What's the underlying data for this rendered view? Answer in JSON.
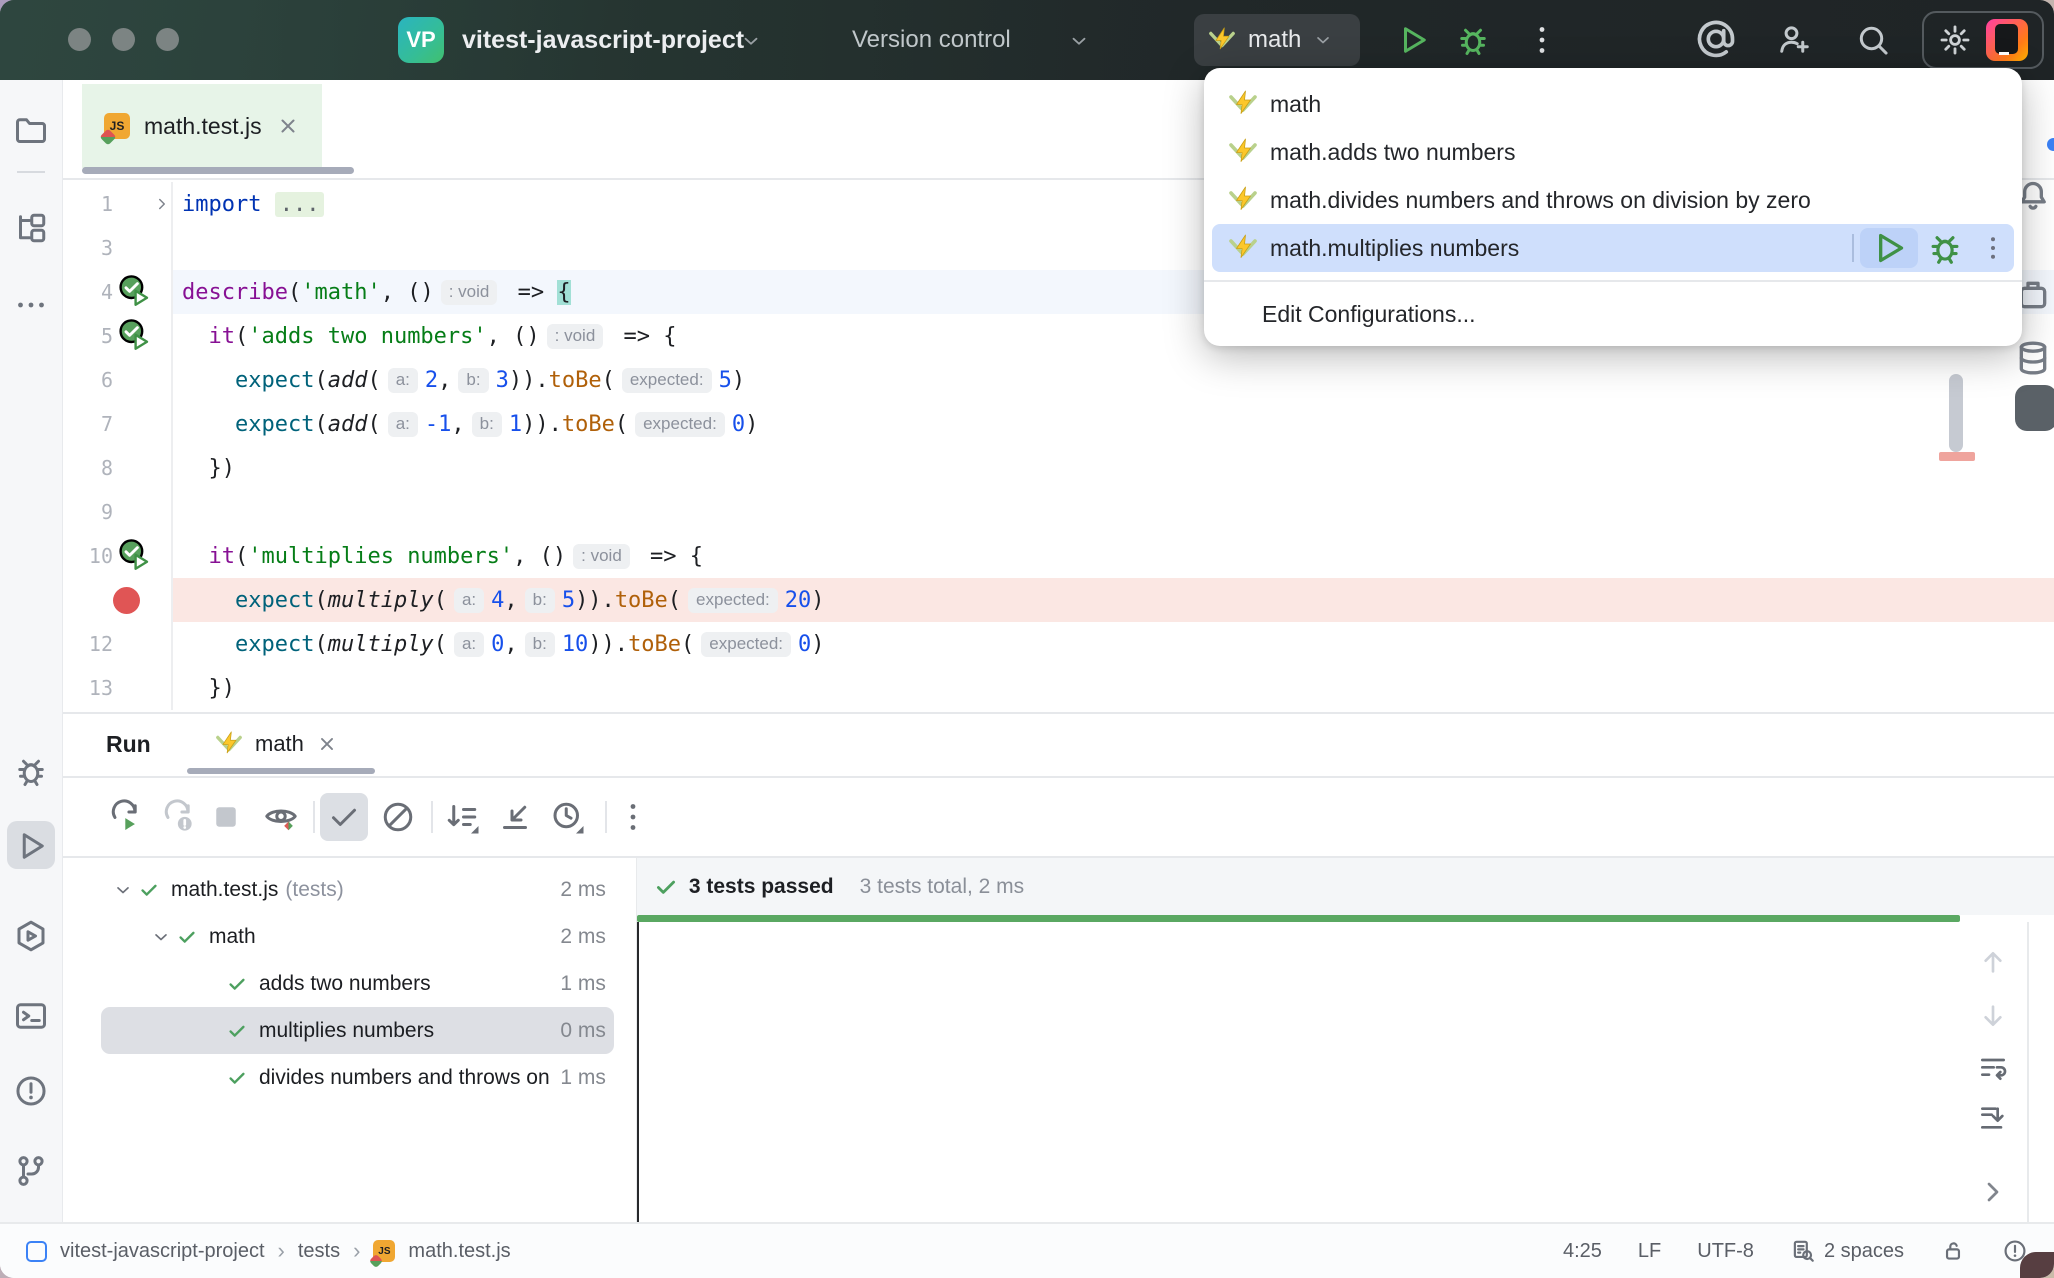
{
  "titlebar": {
    "project_badge": "VP",
    "project_name": "vitest-javascript-project",
    "menu_item": "Version control",
    "run_config": {
      "label": "math"
    }
  },
  "tab_bar": {
    "tabs": [
      {
        "label": "math.test.js",
        "active": true
      }
    ]
  },
  "editor": {
    "lines": [
      {
        "num": "1",
        "fold": true,
        "tokens": [
          [
            "kw",
            "import"
          ],
          [
            "pl",
            " "
          ],
          [
            "fold",
            "..."
          ]
        ]
      },
      {
        "num": "3",
        "tokens": []
      },
      {
        "num": "4",
        "run_icon": true,
        "cur": true,
        "tokens": [
          [
            "fn",
            "describe"
          ],
          [
            "pl",
            "("
          ],
          [
            "str",
            "'math'"
          ],
          [
            "pl",
            ", ()"
          ],
          [
            "inlay",
            ": void"
          ],
          [
            "pl",
            " => "
          ],
          [
            "brc",
            "{"
          ]
        ]
      },
      {
        "num": "5",
        "run_icon": true,
        "tokens": [
          [
            "pl",
            "  "
          ],
          [
            "fn",
            "it"
          ],
          [
            "pl",
            "("
          ],
          [
            "str",
            "'adds two numbers'"
          ],
          [
            "pl",
            ", ()"
          ],
          [
            "inlay",
            ": void"
          ],
          [
            "pl",
            " => {"
          ]
        ]
      },
      {
        "num": "6",
        "tokens": [
          [
            "pl",
            "    "
          ],
          [
            "call",
            "expect"
          ],
          [
            "pl",
            "("
          ],
          [
            "itl",
            "add"
          ],
          [
            "pl",
            "("
          ],
          [
            "inlay",
            "a:"
          ],
          [
            "num",
            "2"
          ],
          [
            "pl",
            ","
          ],
          [
            "inlay",
            "b:"
          ],
          [
            "num",
            "3"
          ],
          [
            "pl",
            "))."
          ],
          [
            "mth",
            "toBe"
          ],
          [
            "pl",
            "("
          ],
          [
            "inlay",
            "expected:"
          ],
          [
            "num",
            "5"
          ],
          [
            "pl",
            ")"
          ]
        ]
      },
      {
        "num": "7",
        "tokens": [
          [
            "pl",
            "    "
          ],
          [
            "call",
            "expect"
          ],
          [
            "pl",
            "("
          ],
          [
            "itl",
            "add"
          ],
          [
            "pl",
            "("
          ],
          [
            "inlay",
            "a:"
          ],
          [
            "num",
            "-1"
          ],
          [
            "pl",
            ","
          ],
          [
            "inlay",
            "b:"
          ],
          [
            "num",
            "1"
          ],
          [
            "pl",
            "))."
          ],
          [
            "mth",
            "toBe"
          ],
          [
            "pl",
            "("
          ],
          [
            "inlay",
            "expected:"
          ],
          [
            "num",
            "0"
          ],
          [
            "pl",
            ")"
          ]
        ]
      },
      {
        "num": "8",
        "tokens": [
          [
            "pl",
            "  })"
          ]
        ]
      },
      {
        "num": "9",
        "tokens": []
      },
      {
        "num": "10",
        "run_icon": true,
        "tokens": [
          [
            "pl",
            "  "
          ],
          [
            "fn",
            "it"
          ],
          [
            "pl",
            "("
          ],
          [
            "str",
            "'multiplies numbers'"
          ],
          [
            "pl",
            ", ()"
          ],
          [
            "inlay",
            ": void"
          ],
          [
            "pl",
            " => {"
          ]
        ]
      },
      {
        "num": "",
        "breakpoint": true,
        "tokens": [
          [
            "pl",
            "    "
          ],
          [
            "call",
            "expect"
          ],
          [
            "pl",
            "("
          ],
          [
            "itl",
            "multiply"
          ],
          [
            "pl",
            "("
          ],
          [
            "inlay",
            "a:"
          ],
          [
            "num",
            "4"
          ],
          [
            "pl",
            ","
          ],
          [
            "inlay",
            "b:"
          ],
          [
            "num",
            "5"
          ],
          [
            "pl",
            "))."
          ],
          [
            "mth",
            "toBe"
          ],
          [
            "pl",
            "("
          ],
          [
            "inlay",
            "expected:"
          ],
          [
            "num",
            "20"
          ],
          [
            "pl",
            ")"
          ]
        ]
      },
      {
        "num": "12",
        "tokens": [
          [
            "pl",
            "    "
          ],
          [
            "call",
            "expect"
          ],
          [
            "pl",
            "("
          ],
          [
            "itl",
            "multiply"
          ],
          [
            "pl",
            "("
          ],
          [
            "inlay",
            "a:"
          ],
          [
            "num",
            "0"
          ],
          [
            "pl",
            ","
          ],
          [
            "inlay",
            "b:"
          ],
          [
            "num",
            "10"
          ],
          [
            "pl",
            "))."
          ],
          [
            "mth",
            "toBe"
          ],
          [
            "pl",
            "("
          ],
          [
            "inlay",
            "expected:"
          ],
          [
            "num",
            "0"
          ],
          [
            "pl",
            ")"
          ]
        ]
      },
      {
        "num": "13",
        "tokens": [
          [
            "pl",
            "  })"
          ]
        ]
      }
    ]
  },
  "run_config_popup": {
    "items": [
      {
        "label": "math",
        "selected": false
      },
      {
        "label": "math.adds two numbers",
        "selected": false
      },
      {
        "label": "math.divides numbers and throws on division by zero",
        "selected": false
      },
      {
        "label": "math.multiplies numbers",
        "selected": true
      }
    ],
    "footer": "Edit Configurations..."
  },
  "run_panel": {
    "title": "Run",
    "tab": "math",
    "tree": [
      {
        "level": 0,
        "chev": true,
        "label": "math.test.js",
        "suffix": "(tests)",
        "duration": "2 ms",
        "selected": false
      },
      {
        "level": 1,
        "chev": true,
        "label": "math",
        "suffix": "",
        "duration": "2 ms",
        "selected": false
      },
      {
        "level": 2,
        "chev": false,
        "label": "adds two numbers",
        "suffix": "",
        "duration": "1 ms",
        "selected": false
      },
      {
        "level": 2,
        "chev": false,
        "label": "multiplies numbers",
        "suffix": "",
        "duration": "0 ms",
        "selected": true
      },
      {
        "level": 2,
        "chev": false,
        "label": "divides numbers and throws on di",
        "suffix": "",
        "duration": "1 ms",
        "selected": false
      }
    ],
    "summary": {
      "passed": "3 tests passed",
      "total": "3 tests total, 2 ms"
    }
  },
  "status_bar": {
    "breadcrumbs": [
      "vitest-javascript-project",
      "tests",
      "math.test.js"
    ],
    "caret": "4:25",
    "line_ending": "LF",
    "encoding": "UTF-8",
    "indent": "2 spaces"
  },
  "colors": {
    "accent_green": "#59a869",
    "run_green": "#43a047",
    "selection_blue": "#cfdffc",
    "test_passed_green": "#4da05f",
    "breakpoint_red": "#e05555",
    "breakpoint_line_bg": "#fbe7e3",
    "titlebar_bg": "#253430",
    "vitest_yellow": "#fcc72b"
  }
}
